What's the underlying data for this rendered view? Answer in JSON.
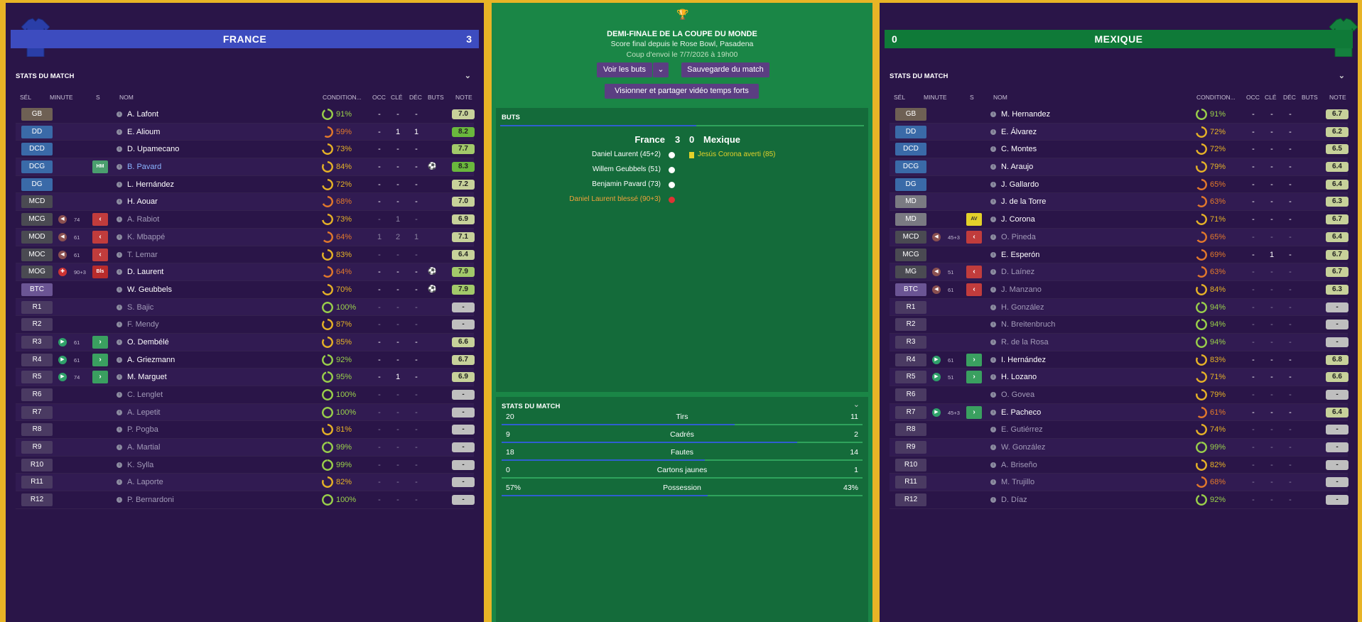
{
  "left_team": {
    "name": "FRANCE",
    "score": "3",
    "stats_header": "STATS DU MATCH",
    "columns": {
      "sel": "SÉL",
      "minute": "MINUTE",
      "s": "S",
      "nom": "NOM",
      "cond": "CONDITION...",
      "occ": "OCC",
      "cle": "CLÉ",
      "dec": "DÉC",
      "buts": "BUTS",
      "note": "NOTE"
    },
    "players": [
      {
        "pos": "GB",
        "name": "A. Lafont",
        "cond": "91%",
        "occ": "-",
        "cle": "-",
        "dec": "-",
        "note": "7.0"
      },
      {
        "pos": "DD",
        "name": "E. Alioum",
        "cond": "59%",
        "occ": "-",
        "cle": "1",
        "dec": "1",
        "note": "8.2"
      },
      {
        "pos": "DCD",
        "name": "D. Upamecano",
        "cond": "73%",
        "occ": "-",
        "cle": "-",
        "dec": "-",
        "note": "7.7"
      },
      {
        "pos": "DCG",
        "name": "B. Pavard",
        "cond": "84%",
        "occ": "-",
        "cle": "-",
        "dec": "-",
        "note": "8.3",
        "badge": "HM"
      },
      {
        "pos": "DG",
        "name": "L. Hernández",
        "cond": "72%",
        "occ": "-",
        "cle": "-",
        "dec": "-",
        "note": "7.2"
      },
      {
        "pos": "MCD",
        "name": "H. Aouar",
        "cond": "68%",
        "occ": "-",
        "cle": "-",
        "dec": "-",
        "note": "7.0"
      },
      {
        "pos": "MCG",
        "name": "A. Rabiot",
        "cond": "73%",
        "occ": "-",
        "cle": "1",
        "dec": "-",
        "note": "6.9",
        "min": "74"
      },
      {
        "pos": "MOD",
        "name": "K. Mbappé",
        "cond": "64%",
        "occ": "1",
        "cle": "2",
        "dec": "1",
        "note": "7.1",
        "min": "61"
      },
      {
        "pos": "MOC",
        "name": "T. Lemar",
        "cond": "83%",
        "occ": "-",
        "cle": "-",
        "dec": "-",
        "note": "6.4",
        "min": "61"
      },
      {
        "pos": "MOG",
        "name": "D. Laurent",
        "cond": "64%",
        "occ": "-",
        "cle": "-",
        "dec": "-",
        "note": "7.9",
        "min": "90+3",
        "badge": "Bls"
      },
      {
        "pos": "BTC",
        "name": "W. Geubbels",
        "cond": "70%",
        "occ": "-",
        "cle": "-",
        "dec": "-",
        "note": "7.9"
      },
      {
        "pos": "R1",
        "name": "S. Bajic",
        "cond": "100%",
        "occ": "-",
        "cle": "-",
        "dec": "-",
        "note": "-"
      },
      {
        "pos": "R2",
        "name": "F. Mendy",
        "cond": "87%",
        "occ": "-",
        "cle": "-",
        "dec": "-",
        "note": "-"
      },
      {
        "pos": "R3",
        "name": "O. Dembélé",
        "cond": "85%",
        "occ": "-",
        "cle": "-",
        "dec": "-",
        "note": "6.6",
        "min": "61"
      },
      {
        "pos": "R4",
        "name": "A. Griezmann",
        "cond": "92%",
        "occ": "-",
        "cle": "-",
        "dec": "-",
        "note": "6.7",
        "min": "61"
      },
      {
        "pos": "R5",
        "name": "M. Marguet",
        "cond": "95%",
        "occ": "-",
        "cle": "1",
        "dec": "-",
        "note": "6.9",
        "min": "74"
      },
      {
        "pos": "R6",
        "name": "C. Lenglet",
        "cond": "100%",
        "occ": "-",
        "cle": "-",
        "dec": "-",
        "note": "-"
      },
      {
        "pos": "R7",
        "name": "A. Lepetit",
        "cond": "100%",
        "occ": "-",
        "cle": "-",
        "dec": "-",
        "note": "-"
      },
      {
        "pos": "R8",
        "name": "P. Pogba",
        "cond": "81%",
        "occ": "-",
        "cle": "-",
        "dec": "-",
        "note": "-"
      },
      {
        "pos": "R9",
        "name": "A. Martial",
        "cond": "99%",
        "occ": "-",
        "cle": "-",
        "dec": "-",
        "note": "-"
      },
      {
        "pos": "R10",
        "name": "K. Sylla",
        "cond": "99%",
        "occ": "-",
        "cle": "-",
        "dec": "-",
        "note": "-"
      },
      {
        "pos": "R11",
        "name": "A. Laporte",
        "cond": "82%",
        "occ": "-",
        "cle": "-",
        "dec": "-",
        "note": "-"
      },
      {
        "pos": "R12",
        "name": "P. Bernardoni",
        "cond": "100%",
        "occ": "-",
        "cle": "-",
        "dec": "-",
        "note": "-"
      }
    ]
  },
  "right_team": {
    "name": "MEXIQUE",
    "score": "0",
    "stats_header": "STATS DU MATCH",
    "columns": {
      "sel": "SÉL",
      "minute": "MINUTE",
      "s": "S",
      "nom": "NOM",
      "cond": "CONDITION...",
      "occ": "OCC",
      "cle": "CLÉ",
      "dec": "DÉC",
      "buts": "BUTS",
      "note": "NOTE"
    },
    "players": [
      {
        "pos": "GB",
        "name": "M. Hernandez",
        "cond": "91%",
        "occ": "-",
        "cle": "-",
        "dec": "-",
        "note": "6.7"
      },
      {
        "pos": "DD",
        "name": "E. Álvarez",
        "cond": "72%",
        "occ": "-",
        "cle": "-",
        "dec": "-",
        "note": "6.2"
      },
      {
        "pos": "DCD",
        "name": "C. Montes",
        "cond": "72%",
        "occ": "-",
        "cle": "-",
        "dec": "-",
        "note": "6.5"
      },
      {
        "pos": "DCG",
        "name": "N. Araujo",
        "cond": "79%",
        "occ": "-",
        "cle": "-",
        "dec": "-",
        "note": "6.4"
      },
      {
        "pos": "DG",
        "name": "J. Gallardo",
        "cond": "65%",
        "occ": "-",
        "cle": "-",
        "dec": "-",
        "note": "6.4"
      },
      {
        "pos": "MD",
        "name": "J. de la Torre",
        "cond": "63%",
        "occ": "-",
        "cle": "-",
        "dec": "-",
        "note": "6.3"
      },
      {
        "pos": "MD",
        "name": "J. Corona",
        "cond": "71%",
        "occ": "-",
        "cle": "-",
        "dec": "-",
        "note": "6.7",
        "badge": "AV"
      },
      {
        "pos": "MCD",
        "name": "O. Pineda",
        "cond": "65%",
        "occ": "-",
        "cle": "-",
        "dec": "-",
        "note": "6.4",
        "min": "45+3"
      },
      {
        "pos": "MCG",
        "name": "E. Esperón",
        "cond": "69%",
        "occ": "-",
        "cle": "1",
        "dec": "-",
        "note": "6.7"
      },
      {
        "pos": "MG",
        "name": "D. Laínez",
        "cond": "63%",
        "occ": "-",
        "cle": "-",
        "dec": "-",
        "note": "6.7",
        "min": "51"
      },
      {
        "pos": "BTC",
        "name": "J. Manzano",
        "cond": "84%",
        "occ": "-",
        "cle": "-",
        "dec": "-",
        "note": "6.3",
        "min": "61"
      },
      {
        "pos": "R1",
        "name": "H. González",
        "cond": "94%",
        "occ": "-",
        "cle": "-",
        "dec": "-",
        "note": "-"
      },
      {
        "pos": "R2",
        "name": "N. Breitenbruch",
        "cond": "94%",
        "occ": "-",
        "cle": "-",
        "dec": "-",
        "note": "-"
      },
      {
        "pos": "R3",
        "name": "R. de la Rosa",
        "cond": "94%",
        "occ": "-",
        "cle": "-",
        "dec": "-",
        "note": "-"
      },
      {
        "pos": "R4",
        "name": "I. Hernández",
        "cond": "83%",
        "occ": "-",
        "cle": "-",
        "dec": "-",
        "note": "6.8",
        "min": "61"
      },
      {
        "pos": "R5",
        "name": "H. Lozano",
        "cond": "71%",
        "occ": "-",
        "cle": "-",
        "dec": "-",
        "note": "6.6",
        "min": "51"
      },
      {
        "pos": "R6",
        "name": "O. Govea",
        "cond": "79%",
        "occ": "-",
        "cle": "-",
        "dec": "-",
        "note": "-"
      },
      {
        "pos": "R7",
        "name": "E. Pacheco",
        "cond": "61%",
        "occ": "-",
        "cle": "-",
        "dec": "-",
        "note": "6.4",
        "min": "45+3"
      },
      {
        "pos": "R8",
        "name": "E. Gutiérrez",
        "cond": "74%",
        "occ": "-",
        "cle": "-",
        "dec": "-",
        "note": "-"
      },
      {
        "pos": "R9",
        "name": "W. González",
        "cond": "99%",
        "occ": "-",
        "cle": "-",
        "dec": "-",
        "note": "-"
      },
      {
        "pos": "R10",
        "name": "A. Briseño",
        "cond": "82%",
        "occ": "-",
        "cle": "-",
        "dec": "-",
        "note": "-"
      },
      {
        "pos": "R11",
        "name": "M. Trujillo",
        "cond": "68%",
        "occ": "-",
        "cle": "-",
        "dec": "-",
        "note": "-"
      },
      {
        "pos": "R12",
        "name": "D. Díaz",
        "cond": "92%",
        "occ": "-",
        "cle": "-",
        "dec": "-",
        "note": "-"
      }
    ]
  },
  "match": {
    "title": "DEMI-FINALE DE LA COUPE DU MONDE",
    "subtitle": "Score final depuis le Rose Bowl, Pasadena",
    "kickoff": "Coup d'envoi le 7/7/2026 à 19h00",
    "btn_goals": "Voir les buts",
    "btn_save": "Sauvegarde du match",
    "btn_video": "Visionner et partager vidéo temps forts",
    "goals_header": "BUTS",
    "home": "France",
    "away": "Mexique",
    "home_score": "3",
    "away_score": "0",
    "home_events": [
      "Daniel Laurent (45+2)",
      "Willem Geubbels (51)",
      "Benjamin Pavard (73)",
      "Daniel Laurent blessé (90+3)"
    ],
    "away_events": [
      "Jesús Corona averti (85)"
    ],
    "stats_header": "STATS DU MATCH",
    "stats": [
      {
        "label": "Tirs",
        "home": "20",
        "away": "11",
        "share": 0.645
      },
      {
        "label": "Cadrés",
        "home": "9",
        "away": "2",
        "share": 0.818
      },
      {
        "label": "Fautes",
        "home": "18",
        "away": "14",
        "share": 0.5625
      },
      {
        "label": "Cartons jaunes",
        "home": "0",
        "away": "1",
        "share": 0.0
      },
      {
        "label": "Possession",
        "home": "57%",
        "away": "43%",
        "share": 0.57
      }
    ]
  },
  "colors": {
    "france": "#3d4cbf",
    "mexique": "#0f7a38",
    "pitch": "#1a8646"
  }
}
